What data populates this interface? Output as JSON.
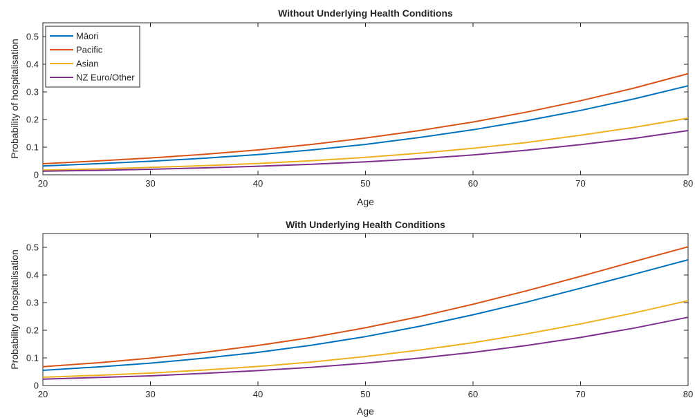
{
  "chart_data": [
    {
      "type": "line",
      "title": "Without Underlying Health Conditions",
      "xlabel": "Age",
      "ylabel": "Probability of hospitalisation",
      "xlim": [
        20,
        80
      ],
      "ylim": [
        0,
        0.55
      ],
      "xticks": [
        "20",
        "30",
        "40",
        "50",
        "60",
        "70",
        "80"
      ],
      "yticks": [
        "0",
        "0.1",
        "0.2",
        "0.3",
        "0.4",
        "0.5"
      ],
      "grid": false,
      "legend": "top-left",
      "x": [
        20,
        25,
        30,
        35,
        40,
        45,
        50,
        55,
        60,
        65,
        70,
        75,
        80
      ],
      "series": [
        {
          "name": "Māori",
          "color": "#0072BD",
          "values": [
            0.032,
            0.04,
            0.049,
            0.06,
            0.073,
            0.09,
            0.11,
            0.135,
            0.163,
            0.196,
            0.233,
            0.275,
            0.322
          ]
        },
        {
          "name": "Pacific",
          "color": "#D95319",
          "values": [
            0.04,
            0.05,
            0.061,
            0.074,
            0.09,
            0.11,
            0.133,
            0.16,
            0.191,
            0.227,
            0.268,
            0.314,
            0.366
          ]
        },
        {
          "name": "Asian",
          "color": "#EDB120",
          "values": [
            0.017,
            0.021,
            0.027,
            0.033,
            0.041,
            0.051,
            0.063,
            0.078,
            0.096,
            0.117,
            0.143,
            0.172,
            0.205
          ]
        },
        {
          "name": "NZ Euro/Other",
          "color": "#7E2F8E",
          "values": [
            0.013,
            0.016,
            0.02,
            0.025,
            0.031,
            0.038,
            0.047,
            0.058,
            0.072,
            0.089,
            0.109,
            0.132,
            0.16
          ]
        }
      ]
    },
    {
      "type": "line",
      "title": "With Underlying Health Conditions",
      "xlabel": "Age",
      "ylabel": "Probability of hospitalisation",
      "xlim": [
        20,
        80
      ],
      "ylim": [
        0,
        0.55
      ],
      "xticks": [
        "20",
        "30",
        "40",
        "50",
        "60",
        "70",
        "80"
      ],
      "yticks": [
        "0",
        "0.1",
        "0.2",
        "0.3",
        "0.4",
        "0.5"
      ],
      "grid": false,
      "x": [
        20,
        25,
        30,
        35,
        40,
        45,
        50,
        55,
        60,
        65,
        70,
        75,
        80
      ],
      "series": [
        {
          "color": "#0072BD",
          "values": [
            0.055,
            0.067,
            0.081,
            0.099,
            0.12,
            0.146,
            0.177,
            0.214,
            0.256,
            0.302,
            0.352,
            0.403,
            0.455
          ]
        },
        {
          "color": "#D95319",
          "values": [
            0.068,
            0.082,
            0.099,
            0.12,
            0.145,
            0.174,
            0.209,
            0.249,
            0.294,
            0.343,
            0.395,
            0.449,
            0.502
          ]
        },
        {
          "color": "#EDB120",
          "values": [
            0.03,
            0.037,
            0.045,
            0.056,
            0.069,
            0.085,
            0.105,
            0.128,
            0.155,
            0.187,
            0.223,
            0.263,
            0.307
          ]
        },
        {
          "color": "#7E2F8E",
          "values": [
            0.023,
            0.029,
            0.035,
            0.044,
            0.054,
            0.066,
            0.081,
            0.099,
            0.12,
            0.145,
            0.174,
            0.208,
            0.247
          ]
        }
      ]
    }
  ]
}
